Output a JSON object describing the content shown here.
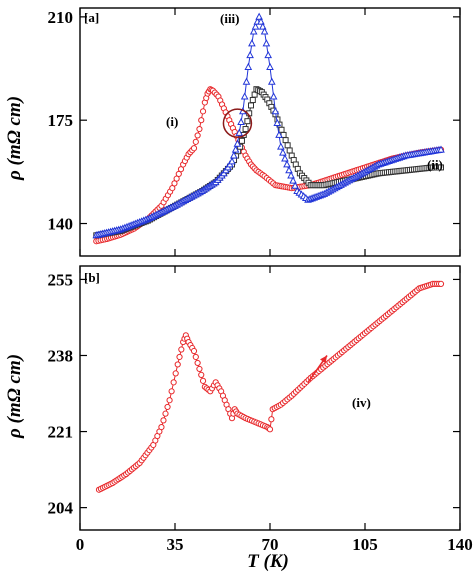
{
  "chart_data": [
    {
      "type": "scatter",
      "panel_label": "[a]",
      "ylabel": "ρ (mΩ cm)",
      "xlim": [
        0,
        140
      ],
      "ylim": [
        129,
        213
      ],
      "yticks": [
        "140",
        "175",
        "210"
      ],
      "series": [
        {
          "name": "(i)",
          "color": "#e8292c",
          "marker": "circle",
          "points": [
            [
              6,
              134
            ],
            [
              10,
              134.8
            ],
            [
              15,
              136.2
            ],
            [
              20,
              138.3
            ],
            [
              25,
              141.5
            ],
            [
              30,
              146
            ],
            [
              34,
              152
            ],
            [
              38,
              160
            ],
            [
              40,
              163.5
            ],
            [
              42,
              165.5
            ],
            [
              44,
              172
            ],
            [
              46,
              181
            ],
            [
              47,
              184
            ],
            [
              48,
              185.5
            ],
            [
              49,
              185
            ],
            [
              51,
              183
            ],
            [
              53,
              179
            ],
            [
              55,
              175
            ],
            [
              57,
              171
            ],
            [
              59,
              167
            ],
            [
              61,
              163
            ],
            [
              63,
              160
            ],
            [
              65,
              158
            ],
            [
              68,
              156
            ],
            [
              72,
              153
            ],
            [
              78,
              152
            ],
            [
              85,
              153
            ],
            [
              95,
              156
            ],
            [
              105,
              159
            ],
            [
              115,
              162
            ],
            [
              125,
              164
            ],
            [
              133,
              165
            ]
          ]
        },
        {
          "name": "(ii)",
          "color": "#333333",
          "marker": "square",
          "points": [
            [
              6,
              136
            ],
            [
              15,
              137.5
            ],
            [
              25,
              141
            ],
            [
              35,
              146
            ],
            [
              45,
              151
            ],
            [
              50,
              154
            ],
            [
              53,
              157
            ],
            [
              56,
              160
            ],
            [
              59,
              166
            ],
            [
              61,
              172
            ],
            [
              63,
              180
            ],
            [
              65,
              185.5
            ],
            [
              67,
              184.5
            ],
            [
              69,
              182
            ],
            [
              72,
              177
            ],
            [
              75,
              170
            ],
            [
              78,
              163
            ],
            [
              81,
              157
            ],
            [
              85,
              153
            ],
            [
              90,
              153
            ],
            [
              100,
              155
            ],
            [
              110,
              157
            ],
            [
              120,
              158
            ],
            [
              130,
              159
            ],
            [
              133,
              159
            ]
          ]
        },
        {
          "name": "(iii)",
          "color": "#2236d8",
          "marker": "triangle",
          "points": [
            [
              6,
              136
            ],
            [
              15,
              138
            ],
            [
              25,
              141.5
            ],
            [
              35,
              146
            ],
            [
              45,
              151
            ],
            [
              50,
              154
            ],
            [
              53,
              157
            ],
            [
              56,
              161
            ],
            [
              58,
              167
            ],
            [
              60,
              178
            ],
            [
              62,
              193
            ],
            [
              64,
              205
            ],
            [
              66,
              210
            ],
            [
              68,
              205
            ],
            [
              70,
              193
            ],
            [
              72,
              178
            ],
            [
              74,
              166
            ],
            [
              77,
              158
            ],
            [
              80,
              151
            ],
            [
              84,
              148
            ],
            [
              90,
              150
            ],
            [
              100,
              155
            ],
            [
              110,
              160
            ],
            [
              120,
              163
            ],
            [
              133,
              165
            ]
          ]
        }
      ],
      "annotations": [
        "(i)",
        "(ii)",
        "(iii)"
      ]
    },
    {
      "type": "scatter",
      "panel_label": "[b]",
      "xlabel": "T (K)",
      "ylabel": "ρ (mΩ cm)",
      "xlim": [
        0,
        140
      ],
      "ylim": [
        199,
        258
      ],
      "xticks": [
        "0",
        "35",
        "70",
        "105",
        "140"
      ],
      "yticks": [
        "204",
        "221",
        "238",
        "255"
      ],
      "series": [
        {
          "name": "(iv)",
          "color": "#e8292c",
          "marker": "circle",
          "points": [
            [
              7,
              208
            ],
            [
              12,
              209.5
            ],
            [
              17,
              211.5
            ],
            [
              22,
              214
            ],
            [
              27,
              218
            ],
            [
              30,
              222
            ],
            [
              33,
              228
            ],
            [
              36,
              236
            ],
            [
              38,
              241
            ],
            [
              39,
              242.5
            ],
            [
              40,
              241
            ],
            [
              42,
              239
            ],
            [
              44,
              235
            ],
            [
              46,
              231
            ],
            [
              48,
              230
            ],
            [
              50,
              232
            ],
            [
              52,
              230
            ],
            [
              54,
              227
            ],
            [
              56,
              224
            ],
            [
              57,
              226
            ],
            [
              58,
              225
            ],
            [
              61,
              224
            ],
            [
              65,
              223
            ],
            [
              69,
              222
            ],
            [
              70,
              221.5
            ],
            [
              71,
              226
            ],
            [
              74,
              227
            ],
            [
              78,
              229
            ],
            [
              85,
              233
            ],
            [
              95,
              238
            ],
            [
              105,
              243
            ],
            [
              115,
              248
            ],
            [
              125,
              253
            ],
            [
              130,
              254
            ],
            [
              133,
              254
            ]
          ]
        }
      ],
      "annotations": [
        "(iv)"
      ]
    }
  ]
}
